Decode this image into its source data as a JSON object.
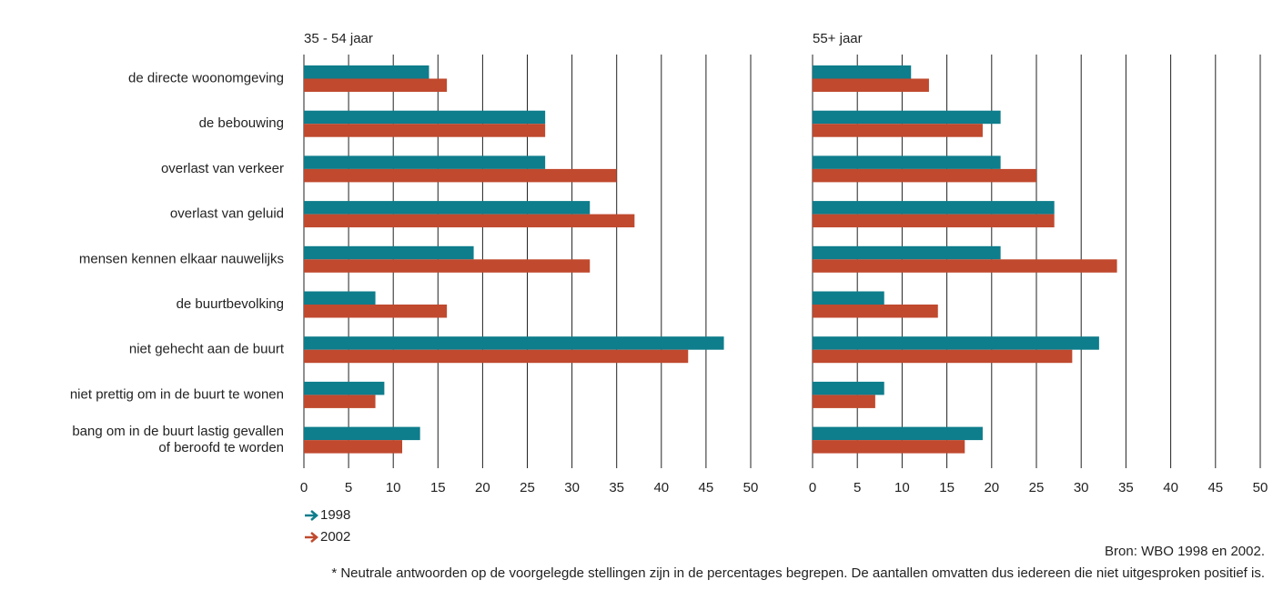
{
  "chart_data": [
    {
      "type": "bar",
      "orientation": "horizontal",
      "subtitle": "35 - 54 jaar",
      "categories": [
        "de directe woonomgeving",
        "de bebouwing",
        "overlast van verkeer",
        "overlast van geluid",
        "mensen kennen elkaar nauwelijks",
        "de buurtbevolking",
        "niet gehecht aan de buurt",
        "niet prettig om in de buurt te wonen",
        "bang om in de buurt lastig gevallen\nof beroofd te worden"
      ],
      "series": [
        {
          "name": "1998",
          "color": "#0e7d8c",
          "values": [
            14,
            27,
            27,
            32,
            19,
            8,
            47,
            9,
            13
          ]
        },
        {
          "name": "2002",
          "color": "#c0492e",
          "values": [
            16,
            27,
            35,
            37,
            32,
            16,
            43,
            8,
            11
          ]
        }
      ],
      "xlim": [
        0,
        50
      ],
      "xticks": [
        0,
        5,
        10,
        15,
        20,
        25,
        30,
        35,
        40,
        45,
        50
      ],
      "grid": true
    },
    {
      "type": "bar",
      "orientation": "horizontal",
      "subtitle": "55+ jaar",
      "series": [
        {
          "color": "#0e7d8c",
          "values": [
            11,
            21,
            21,
            27,
            21,
            8,
            32,
            8,
            19
          ]
        },
        {
          "color": "#c0492e",
          "values": [
            13,
            19,
            25,
            27,
            34,
            14,
            29,
            7,
            17
          ]
        }
      ],
      "xlim": [
        0,
        50
      ],
      "xticks": [
        0,
        5,
        10,
        15,
        20,
        25,
        30,
        35,
        40,
        45,
        50
      ],
      "grid": true
    }
  ],
  "source": "Bron: WBO 1998 en 2002.",
  "footnote": "* Neutrale antwoorden op de voorgelegde stellingen zijn in de percentages begrepen. De aantallen omvatten dus iedereen die niet uitgesproken positief is."
}
